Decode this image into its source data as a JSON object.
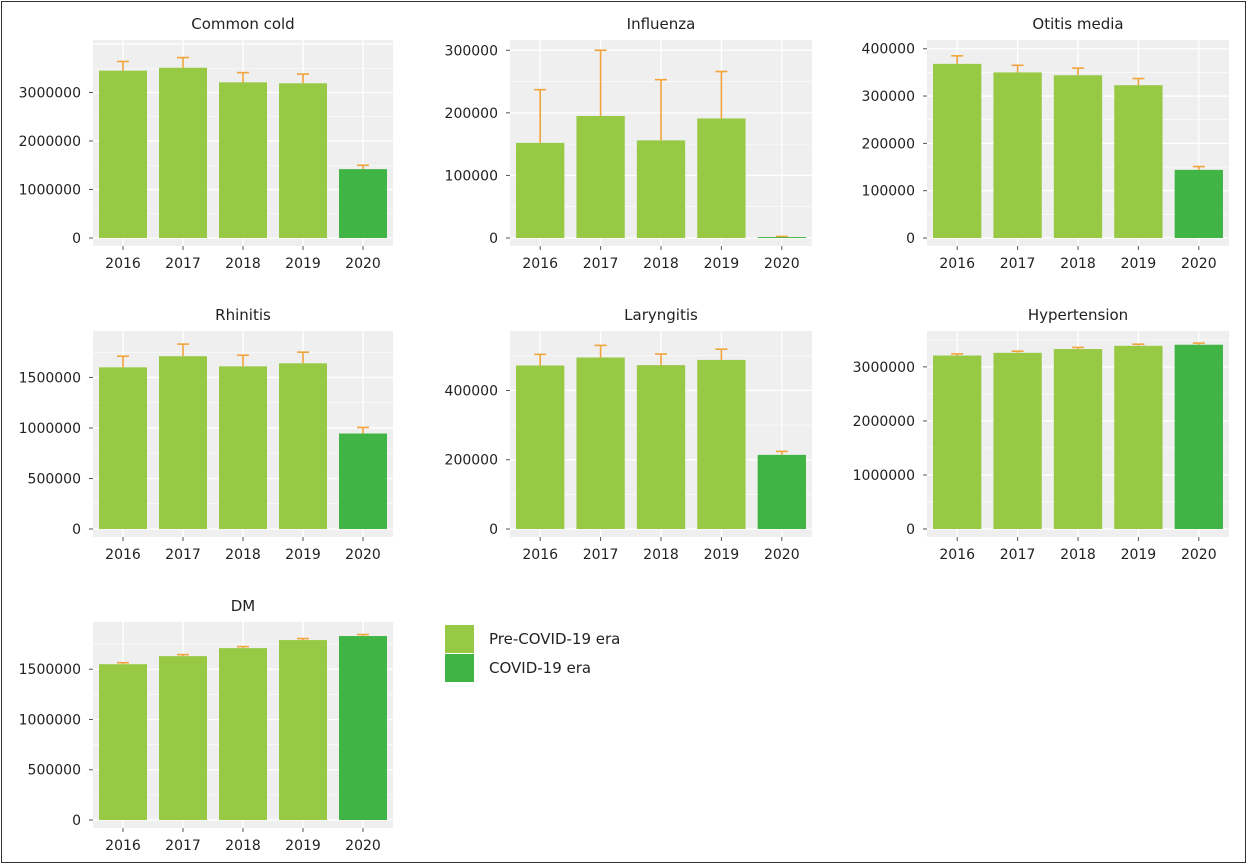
{
  "colors": {
    "pre_covid": "#97c945",
    "covid": "#40b444",
    "error_bar": "#f1a43c",
    "panel_bg": "#efefef",
    "grid": "#ffffff"
  },
  "legend": {
    "items": [
      {
        "label": "Pre-COVID-19 era",
        "color": "#97c945"
      },
      {
        "label": "COVID-19 era",
        "color": "#40b444"
      }
    ]
  },
  "chart_data": [
    {
      "type": "bar",
      "title": "Common cold",
      "categories": [
        "2016",
        "2017",
        "2018",
        "2019",
        "2020"
      ],
      "values": [
        3450000,
        3510000,
        3210000,
        3190000,
        1420000
      ],
      "errors": [
        190000,
        210000,
        200000,
        190000,
        80000
      ],
      "ylim": [
        0,
        4000000
      ],
      "yticks": [
        0,
        1000000,
        2000000,
        3000000
      ],
      "ytick_labels": [
        "0",
        "1000000",
        "2000000",
        "3000000"
      ],
      "era": [
        "pre",
        "pre",
        "pre",
        "pre",
        "covid"
      ]
    },
    {
      "type": "bar",
      "title": "Influenza",
      "categories": [
        "2016",
        "2017",
        "2018",
        "2019",
        "2020"
      ],
      "values": [
        152000,
        195000,
        156000,
        191000,
        1500
      ],
      "errors": [
        85000,
        105000,
        97000,
        75000,
        1000
      ],
      "ylim": [
        0,
        310000
      ],
      "yticks": [
        0,
        100000,
        200000,
        300000
      ],
      "ytick_labels": [
        "0",
        "100000",
        "200000",
        "300000"
      ],
      "era": [
        "pre",
        "pre",
        "pre",
        "pre",
        "covid"
      ]
    },
    {
      "type": "bar",
      "title": "Otitis media",
      "categories": [
        "2016",
        "2017",
        "2018",
        "2019",
        "2020"
      ],
      "values": [
        368000,
        350000,
        344000,
        323000,
        144000
      ],
      "errors": [
        17000,
        15000,
        15000,
        14000,
        7000
      ],
      "ylim": [
        0,
        410000
      ],
      "yticks": [
        0,
        100000,
        200000,
        300000,
        400000
      ],
      "ytick_labels": [
        "0",
        "100000",
        "200000",
        "300000",
        "400000"
      ],
      "era": [
        "pre",
        "pre",
        "pre",
        "pre",
        "covid"
      ]
    },
    {
      "type": "bar",
      "title": "Rhinitis",
      "categories": [
        "2016",
        "2017",
        "2018",
        "2019",
        "2020"
      ],
      "values": [
        1600000,
        1710000,
        1610000,
        1640000,
        945000
      ],
      "errors": [
        110000,
        120000,
        110000,
        110000,
        60000
      ],
      "ylim": [
        0,
        1920000
      ],
      "yticks": [
        0,
        500000,
        1000000,
        1500000
      ],
      "ytick_labels": [
        "0",
        "500000",
        "1000000",
        "1500000"
      ],
      "era": [
        "pre",
        "pre",
        "pre",
        "pre",
        "covid"
      ]
    },
    {
      "type": "bar",
      "title": "Laryngitis",
      "categories": [
        "2016",
        "2017",
        "2018",
        "2019",
        "2020"
      ],
      "values": [
        472000,
        495000,
        473000,
        488000,
        214000
      ],
      "errors": [
        32000,
        35000,
        32000,
        31000,
        10000
      ],
      "ylim": [
        0,
        560000
      ],
      "yticks": [
        0,
        200000,
        400000
      ],
      "ytick_labels": [
        "0",
        "200000",
        "400000"
      ],
      "era": [
        "pre",
        "pre",
        "pre",
        "pre",
        "covid"
      ]
    },
    {
      "type": "bar",
      "title": "Hypertension",
      "categories": [
        "2016",
        "2017",
        "2018",
        "2019",
        "2020"
      ],
      "values": [
        3210000,
        3260000,
        3330000,
        3390000,
        3410000
      ],
      "errors": [
        30000,
        30000,
        30000,
        30000,
        30000
      ],
      "ylim": [
        0,
        3590000
      ],
      "yticks": [
        0,
        1000000,
        2000000,
        3000000
      ],
      "ytick_labels": [
        "0",
        "1000000",
        "2000000",
        "3000000"
      ],
      "era": [
        "pre",
        "pre",
        "pre",
        "pre",
        "covid"
      ]
    },
    {
      "type": "bar",
      "title": "DM",
      "categories": [
        "2016",
        "2017",
        "2018",
        "2019",
        "2020"
      ],
      "values": [
        1550000,
        1630000,
        1710000,
        1790000,
        1830000
      ],
      "errors": [
        15000,
        15000,
        15000,
        15000,
        15000
      ],
      "ylim": [
        0,
        1930000
      ],
      "yticks": [
        0,
        500000,
        1000000,
        1500000
      ],
      "ytick_labels": [
        "0",
        "500000",
        "1000000",
        "1500000"
      ],
      "era": [
        "pre",
        "pre",
        "pre",
        "pre",
        "covid"
      ]
    }
  ]
}
